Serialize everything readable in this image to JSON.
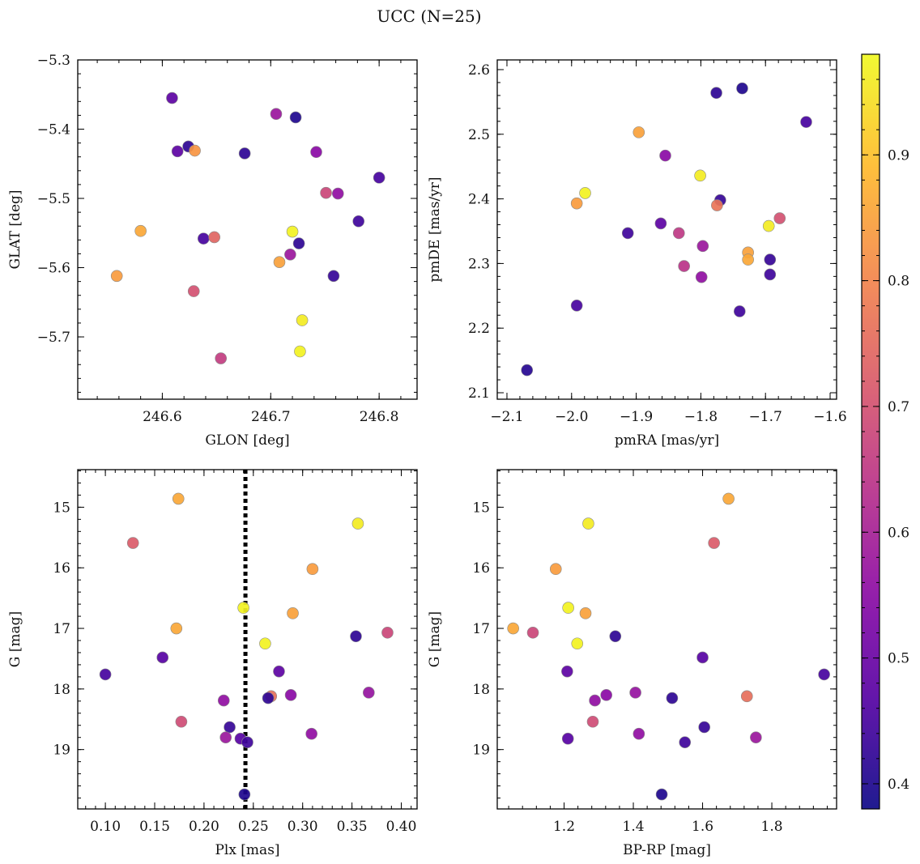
{
  "figure": {
    "title": "UCC (N=25)",
    "colorbar": {
      "colormap": "plasma",
      "range": [
        0.38,
        0.98
      ],
      "ticks": [
        0.4,
        0.5,
        0.6,
        0.7,
        0.8,
        0.9
      ],
      "tick_labels": [
        "0.4",
        "0.5",
        "0.6",
        "0.7",
        "0.8",
        "0.9"
      ]
    }
  },
  "chart_data": [
    {
      "type": "scatter",
      "panel": "top-left",
      "title": "",
      "xlabel": "GLON [deg]",
      "ylabel": "GLAT [deg]",
      "xlim": [
        246.522,
        246.835
      ],
      "ylim": [
        -5.79,
        -5.3
      ],
      "xticks": [
        246.6,
        246.7,
        246.8
      ],
      "xtick_labels": [
        "246.6",
        "246.7",
        "246.8"
      ],
      "yticks": [
        -5.3,
        -5.4,
        -5.5,
        -5.6,
        -5.7
      ],
      "ytick_labels": [
        "−5.3",
        "−5.4",
        "−5.5",
        "−5.6",
        "−5.7"
      ],
      "points": [
        {
          "x": 246.609,
          "y": -5.355,
          "c": 0.48
        },
        {
          "x": 246.614,
          "y": -5.432,
          "c": 0.48
        },
        {
          "x": 246.624,
          "y": -5.425,
          "c": 0.42
        },
        {
          "x": 246.63,
          "y": -5.431,
          "c": 0.83
        },
        {
          "x": 246.676,
          "y": -5.435,
          "c": 0.42
        },
        {
          "x": 246.705,
          "y": -5.378,
          "c": 0.58
        },
        {
          "x": 246.723,
          "y": -5.383,
          "c": 0.4
        },
        {
          "x": 246.742,
          "y": -5.433,
          "c": 0.55
        },
        {
          "x": 246.8,
          "y": -5.47,
          "c": 0.45
        },
        {
          "x": 246.751,
          "y": -5.492,
          "c": 0.68
        },
        {
          "x": 246.762,
          "y": -5.493,
          "c": 0.56
        },
        {
          "x": 246.781,
          "y": -5.533,
          "c": 0.44
        },
        {
          "x": 246.58,
          "y": -5.547,
          "c": 0.86
        },
        {
          "x": 246.72,
          "y": -5.548,
          "c": 0.97
        },
        {
          "x": 246.638,
          "y": -5.558,
          "c": 0.45
        },
        {
          "x": 246.648,
          "y": -5.556,
          "c": 0.74
        },
        {
          "x": 246.726,
          "y": -5.565,
          "c": 0.42
        },
        {
          "x": 246.718,
          "y": -5.581,
          "c": 0.58
        },
        {
          "x": 246.708,
          "y": -5.592,
          "c": 0.85
        },
        {
          "x": 246.558,
          "y": -5.612,
          "c": 0.84
        },
        {
          "x": 246.758,
          "y": -5.612,
          "c": 0.43
        },
        {
          "x": 246.629,
          "y": -5.634,
          "c": 0.7
        },
        {
          "x": 246.729,
          "y": -5.676,
          "c": 0.96
        },
        {
          "x": 246.727,
          "y": -5.721,
          "c": 0.97
        },
        {
          "x": 246.654,
          "y": -5.731,
          "c": 0.66
        }
      ]
    },
    {
      "type": "scatter",
      "panel": "top-right",
      "title": "",
      "xlabel": "pmRA [mas/yr]",
      "ylabel": "pmDE [mas/yr]",
      "xlim": [
        -2.115,
        -1.59
      ],
      "ylim": [
        2.09,
        2.615
      ],
      "xticks": [
        -2.1,
        -2.0,
        -1.9,
        -1.8,
        -1.7,
        -1.6
      ],
      "xtick_labels": [
        "−2.1",
        "−2.0",
        "−1.9",
        "−1.8",
        "−1.7",
        "−1.6"
      ],
      "yticks": [
        2.1,
        2.2,
        2.3,
        2.4,
        2.5,
        2.6
      ],
      "ytick_labels": [
        "2.1",
        "2.2",
        "2.3",
        "2.4",
        "2.5",
        "2.6"
      ],
      "points": [
        {
          "x": -1.736,
          "y": 2.571,
          "c": 0.4
        },
        {
          "x": -1.776,
          "y": 2.564,
          "c": 0.42
        },
        {
          "x": -1.637,
          "y": 2.519,
          "c": 0.45
        },
        {
          "x": -1.896,
          "y": 2.503,
          "c": 0.85
        },
        {
          "x": -1.855,
          "y": 2.467,
          "c": 0.55
        },
        {
          "x": -1.801,
          "y": 2.436,
          "c": 0.96
        },
        {
          "x": -1.979,
          "y": 2.409,
          "c": 0.97
        },
        {
          "x": -1.77,
          "y": 2.398,
          "c": 0.43
        },
        {
          "x": -1.992,
          "y": 2.393,
          "c": 0.84
        },
        {
          "x": -1.775,
          "y": 2.39,
          "c": 0.77
        },
        {
          "x": -1.678,
          "y": 2.37,
          "c": 0.7
        },
        {
          "x": -1.862,
          "y": 2.362,
          "c": 0.48
        },
        {
          "x": -1.695,
          "y": 2.358,
          "c": 0.96
        },
        {
          "x": -1.913,
          "y": 2.347,
          "c": 0.44
        },
        {
          "x": -1.834,
          "y": 2.347,
          "c": 0.65
        },
        {
          "x": -1.797,
          "y": 2.327,
          "c": 0.58
        },
        {
          "x": -1.727,
          "y": 2.317,
          "c": 0.85
        },
        {
          "x": -1.727,
          "y": 2.306,
          "c": 0.86
        },
        {
          "x": -1.693,
          "y": 2.306,
          "c": 0.43
        },
        {
          "x": -1.826,
          "y": 2.296,
          "c": 0.64
        },
        {
          "x": -1.693,
          "y": 2.283,
          "c": 0.44
        },
        {
          "x": -1.799,
          "y": 2.279,
          "c": 0.56
        },
        {
          "x": -1.992,
          "y": 2.235,
          "c": 0.45
        },
        {
          "x": -1.74,
          "y": 2.226,
          "c": 0.44
        },
        {
          "x": -2.069,
          "y": 2.135,
          "c": 0.41
        }
      ]
    },
    {
      "type": "scatter",
      "panel": "bottom-left",
      "title": "",
      "xlabel": "Plx [mas]",
      "ylabel": "G [mag]",
      "xlim": [
        0.072,
        0.416
      ],
      "ylim": [
        19.98,
        14.38
      ],
      "xticks": [
        0.1,
        0.15,
        0.2,
        0.25,
        0.3,
        0.35,
        0.4
      ],
      "xtick_labels": [
        "0.10",
        "0.15",
        "0.20",
        "0.25",
        "0.30",
        "0.35",
        "0.40"
      ],
      "yticks": [
        15,
        16,
        17,
        18,
        19
      ],
      "ytick_labels": [
        "15",
        "16",
        "17",
        "18",
        "19"
      ],
      "vline": {
        "x": 0.242,
        "style": "dotted"
      },
      "points": [
        {
          "x": 0.174,
          "y": 14.86,
          "c": 0.86
        },
        {
          "x": 0.356,
          "y": 15.27,
          "c": 0.96
        },
        {
          "x": 0.128,
          "y": 15.59,
          "c": 0.72
        },
        {
          "x": 0.31,
          "y": 16.02,
          "c": 0.84
        },
        {
          "x": 0.24,
          "y": 16.66,
          "c": 0.97
        },
        {
          "x": 0.29,
          "y": 16.75,
          "c": 0.85
        },
        {
          "x": 0.172,
          "y": 17.0,
          "c": 0.86
        },
        {
          "x": 0.386,
          "y": 17.07,
          "c": 0.68
        },
        {
          "x": 0.354,
          "y": 17.13,
          "c": 0.42
        },
        {
          "x": 0.262,
          "y": 17.25,
          "c": 0.97
        },
        {
          "x": 0.158,
          "y": 17.48,
          "c": 0.47
        },
        {
          "x": 0.276,
          "y": 17.71,
          "c": 0.48
        },
        {
          "x": 0.1,
          "y": 17.76,
          "c": 0.45
        },
        {
          "x": 0.367,
          "y": 18.06,
          "c": 0.57
        },
        {
          "x": 0.288,
          "y": 18.1,
          "c": 0.55
        },
        {
          "x": 0.268,
          "y": 18.12,
          "c": 0.76
        },
        {
          "x": 0.265,
          "y": 18.15,
          "c": 0.42
        },
        {
          "x": 0.22,
          "y": 18.19,
          "c": 0.56
        },
        {
          "x": 0.177,
          "y": 18.54,
          "c": 0.69
        },
        {
          "x": 0.226,
          "y": 18.63,
          "c": 0.43
        },
        {
          "x": 0.309,
          "y": 18.74,
          "c": 0.56
        },
        {
          "x": 0.222,
          "y": 18.8,
          "c": 0.58
        },
        {
          "x": 0.237,
          "y": 18.82,
          "c": 0.47
        },
        {
          "x": 0.244,
          "y": 18.88,
          "c": 0.44
        },
        {
          "x": 0.241,
          "y": 19.74,
          "c": 0.4
        }
      ]
    },
    {
      "type": "scatter",
      "panel": "bottom-right",
      "title": "",
      "xlabel": "BP-RP [mag]",
      "ylabel": "G [mag]",
      "xlim": [
        1.007,
        1.987
      ],
      "ylim": [
        19.98,
        14.38
      ],
      "xticks": [
        1.2,
        1.4,
        1.6,
        1.8
      ],
      "xtick_labels": [
        "1.2",
        "1.4",
        "1.6",
        "1.8"
      ],
      "yticks": [
        15,
        16,
        17,
        18,
        19
      ],
      "ytick_labels": [
        "15",
        "16",
        "17",
        "18",
        "19"
      ],
      "points": [
        {
          "x": 1.675,
          "y": 14.86,
          "c": 0.86
        },
        {
          "x": 1.27,
          "y": 15.27,
          "c": 0.96
        },
        {
          "x": 1.633,
          "y": 15.59,
          "c": 0.72
        },
        {
          "x": 1.176,
          "y": 16.02,
          "c": 0.84
        },
        {
          "x": 1.212,
          "y": 16.66,
          "c": 0.97
        },
        {
          "x": 1.262,
          "y": 16.75,
          "c": 0.85
        },
        {
          "x": 1.053,
          "y": 17.0,
          "c": 0.86
        },
        {
          "x": 1.11,
          "y": 17.07,
          "c": 0.68
        },
        {
          "x": 1.348,
          "y": 17.13,
          "c": 0.42
        },
        {
          "x": 1.238,
          "y": 17.25,
          "c": 0.97
        },
        {
          "x": 1.6,
          "y": 17.48,
          "c": 0.47
        },
        {
          "x": 1.209,
          "y": 17.71,
          "c": 0.48
        },
        {
          "x": 1.951,
          "y": 17.76,
          "c": 0.45
        },
        {
          "x": 1.406,
          "y": 18.06,
          "c": 0.57
        },
        {
          "x": 1.512,
          "y": 18.15,
          "c": 0.42
        },
        {
          "x": 1.322,
          "y": 18.1,
          "c": 0.55
        },
        {
          "x": 1.728,
          "y": 18.12,
          "c": 0.76
        },
        {
          "x": 1.289,
          "y": 18.19,
          "c": 0.56
        },
        {
          "x": 1.283,
          "y": 18.54,
          "c": 0.69
        },
        {
          "x": 1.605,
          "y": 18.63,
          "c": 0.43
        },
        {
          "x": 1.416,
          "y": 18.74,
          "c": 0.56
        },
        {
          "x": 1.754,
          "y": 18.8,
          "c": 0.58
        },
        {
          "x": 1.211,
          "y": 18.82,
          "c": 0.47
        },
        {
          "x": 1.549,
          "y": 18.88,
          "c": 0.44
        },
        {
          "x": 1.482,
          "y": 19.74,
          "c": 0.4
        }
      ]
    }
  ]
}
